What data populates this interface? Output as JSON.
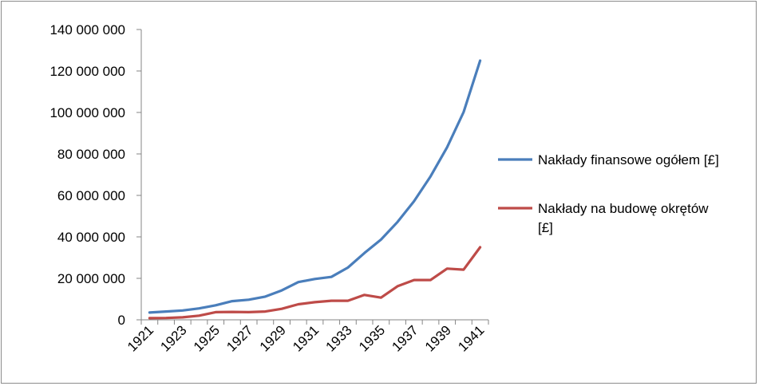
{
  "chart_data": {
    "type": "line",
    "x": [
      "1921",
      "1922",
      "1923",
      "1924",
      "1925",
      "1926",
      "1927",
      "1928",
      "1929",
      "1930",
      "1931",
      "1932",
      "1933",
      "1934",
      "1935",
      "1936",
      "1937",
      "1938",
      "1939",
      "1940",
      "1941"
    ],
    "x_tick_labels": [
      "1921",
      "1923",
      "1925",
      "1927",
      "1929",
      "1931",
      "1933",
      "1935",
      "1937",
      "1939",
      "1941"
    ],
    "y_tick_labels": [
      "0",
      "20 000 000",
      "40 000 000",
      "60 000 000",
      "80 000 000",
      "100 000 000",
      "120 000 000",
      "140 000 000"
    ],
    "ylim": [
      0,
      140000000
    ],
    "y_step": 20000000,
    "grid": false,
    "legend_position": "right",
    "series": [
      {
        "name": "Nakłady finansowe ogółem [£]",
        "color": "#4a7ebb",
        "values": [
          3500000,
          4000000,
          4500000,
          5500000,
          7000000,
          9000000,
          9700000,
          11200000,
          14200000,
          18200000,
          19700000,
          20700000,
          25200000,
          32200000,
          38700000,
          47200000,
          57200000,
          69200000,
          83200000,
          100200000,
          125000000
        ]
      },
      {
        "name": "Nakłady na budowę okrętów [£]",
        "name_lines": [
          "Nakłady na budowę okrętów",
          "[£]"
        ],
        "color": "#be4b48",
        "values": [
          800000,
          900000,
          1200000,
          2000000,
          3700000,
          3800000,
          3700000,
          4000000,
          5300000,
          7500000,
          8500000,
          9200000,
          9200000,
          12000000,
          10700000,
          16200000,
          19200000,
          19200000,
          24700000,
          24200000,
          35000000
        ]
      }
    ]
  }
}
